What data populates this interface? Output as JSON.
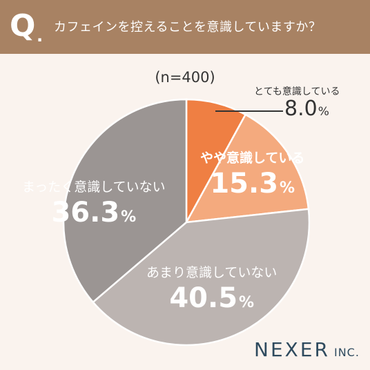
{
  "header": {
    "q_letter": "Q",
    "q_dot": ".",
    "question": "カフェインを控えることを意識していますか？"
  },
  "sample_note": "(n=400)",
  "colors": {
    "header_bg": "#a88263",
    "page_bg": "#faf3ee",
    "slice_1": "#ef7f43",
    "slice_2": "#f4aa7e",
    "slice_3": "#bcb4b1",
    "slice_4": "#9b9593"
  },
  "chart_data": {
    "type": "pie",
    "title": "カフェインを控えることを意識していますか？",
    "slices": [
      {
        "label": "とても意識している",
        "value": 8.0,
        "display": "8.0",
        "unit": "%"
      },
      {
        "label": "やや意識している",
        "value": 15.3,
        "display": "15.3",
        "unit": "%"
      },
      {
        "label": "あまり意識していない",
        "value": 40.5,
        "display": "40.5",
        "unit": "%"
      },
      {
        "label": "まったく意識していない",
        "value": 36.3,
        "display": "36.3",
        "unit": "%"
      }
    ],
    "start": "12 o'clock",
    "direction": "clockwise"
  },
  "logo": {
    "main": "NEXER",
    "suffix": "INC."
  }
}
